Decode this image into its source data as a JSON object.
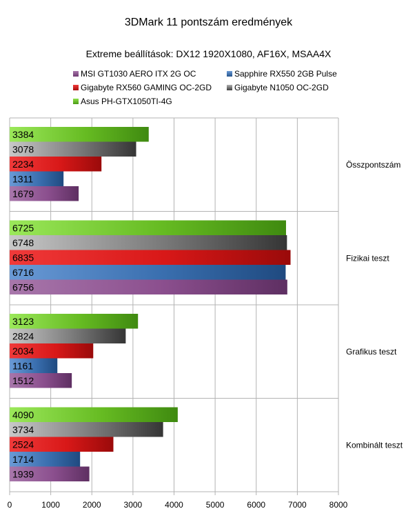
{
  "chart_data": {
    "type": "bar",
    "orientation": "horizontal",
    "title": "3DMark 11 pontszám eredmények",
    "subtitle": "Extreme beállítások: DX12 1920X1080, AF16X, MSAA4X",
    "categories": [
      "Összpontszám",
      "Fizikai teszt",
      "Grafikus teszt",
      "Kombinált teszt"
    ],
    "series": [
      {
        "name": "MSI GT1030 AERO ITX 2G OC",
        "color": "#8b4f8e",
        "values": [
          1679,
          6756,
          1512,
          1939
        ]
      },
      {
        "name": "Sapphire RX550 2GB Pulse",
        "color": "#3a6faf",
        "values": [
          1311,
          6716,
          1161,
          1714
        ]
      },
      {
        "name": "Gigabyte RX560 GAMING OC-2GD",
        "color": "#d81818",
        "values": [
          2234,
          6835,
          2034,
          2524
        ]
      },
      {
        "name": "Gigabyte N1050 OC-2GD",
        "color": "#7a7a7a",
        "values": [
          3078,
          6748,
          2824,
          3734
        ]
      },
      {
        "name": "Asus PH-GTX1050TI-4G",
        "color": "#66bb22",
        "values": [
          3384,
          6725,
          3123,
          4090
        ]
      }
    ],
    "xlim": [
      0,
      8000
    ],
    "xticks": [
      0,
      1000,
      2000,
      3000,
      4000,
      5000,
      6000,
      7000,
      8000
    ],
    "grid": true,
    "legend_position": "top"
  }
}
